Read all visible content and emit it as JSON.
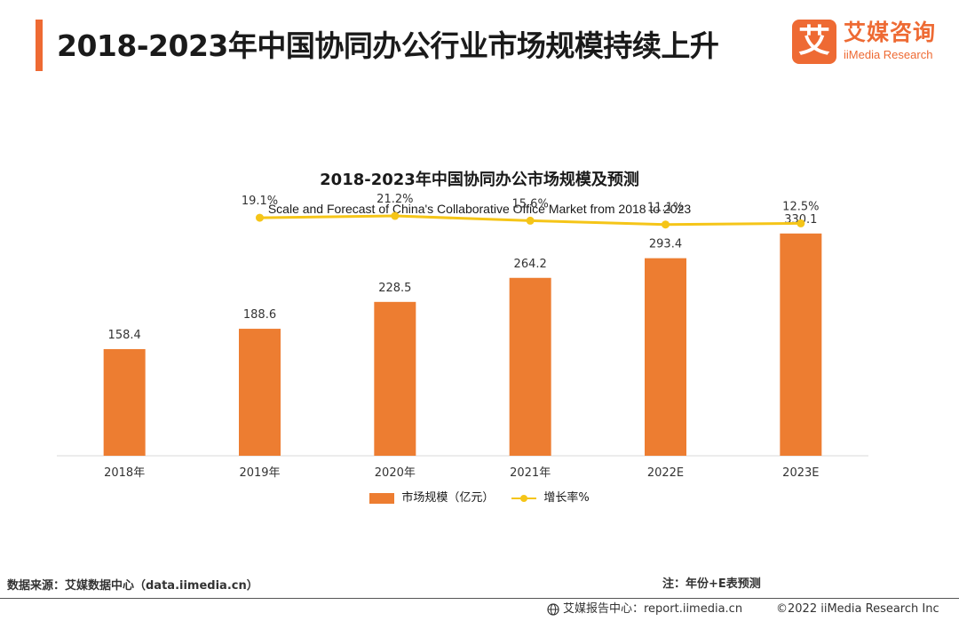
{
  "header": {
    "title": "2018-2023年中国协同办公行业市场规模持续上升",
    "accent_color": "#ee6a33"
  },
  "logo": {
    "mark": "艾",
    "cn": "艾媒咨询",
    "en": "iiMedia Research",
    "color": "#ee6a33"
  },
  "chart_data": {
    "type": "bar",
    "title": "2018-2023年中国协同办公市场规模及预测",
    "subtitle": "Scale and Forecast of China's Collaborative Office Market from 2018 to 2023",
    "categories": [
      "2018年",
      "2019年",
      "2020年",
      "2021年",
      "2022E",
      "2023E"
    ],
    "series": [
      {
        "name": "市场规模（亿元）",
        "kind": "bar",
        "color": "#ed7d31",
        "values": [
          158.4,
          188.6,
          228.5,
          264.2,
          293.4,
          330.1
        ],
        "labels": [
          "158.4",
          "188.6",
          "228.5",
          "264.2",
          "293.4",
          "330.1"
        ]
      },
      {
        "name": "增长率%",
        "kind": "line",
        "color": "#f5c518",
        "values": [
          null,
          19.1,
          21.2,
          15.6,
          11.1,
          12.5
        ],
        "labels": [
          "",
          "19.1%",
          "21.2%",
          "15.6%",
          "11.1%",
          "12.5%"
        ]
      }
    ],
    "ylim": [
      0,
      380
    ],
    "y2lim": [
      -260,
      40
    ],
    "grid": false,
    "legend_position": "bottom"
  },
  "footer": {
    "source": "数据来源：艾媒数据中心（data.iimedia.cn）",
    "note": "注：年份+E表预测",
    "report_center": "艾媒报告中心：report.iimedia.cn",
    "copyright": "©2022  iiMedia Research  Inc"
  }
}
